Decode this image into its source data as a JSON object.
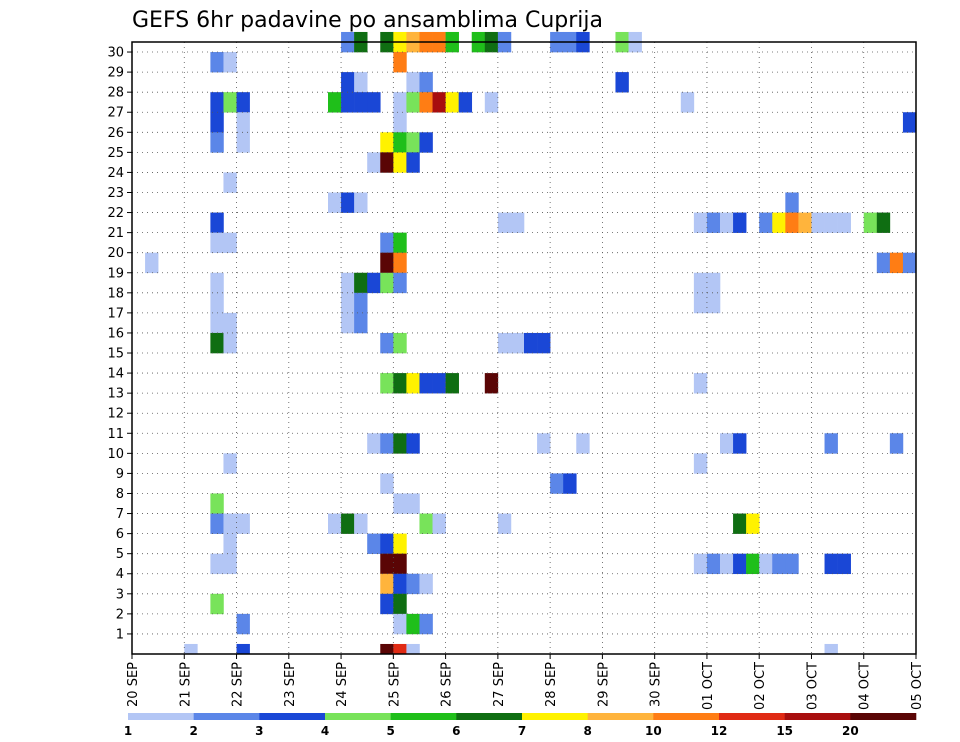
{
  "chart_data": {
    "type": "heatmap",
    "title": "GEFS 6hr padavine po ansamblima Cuprija",
    "x_ticks": [
      "20 SEP",
      "21 SEP",
      "22 SEP",
      "23 SEP",
      "24 SEP",
      "25 SEP",
      "26 SEP",
      "27 SEP",
      "28 SEP",
      "29 SEP",
      "30 SEP",
      "01 OCT",
      "02 OCT",
      "03 OCT",
      "04 OCT",
      "05 OCT"
    ],
    "y_ticks": [
      "1",
      "2",
      "3",
      "4",
      "5",
      "6",
      "7",
      "8",
      "9",
      "10",
      "11",
      "12",
      "13",
      "14",
      "15",
      "16",
      "17",
      "18",
      "19",
      "20",
      "21",
      "22",
      "23",
      "24",
      "25",
      "26",
      "27",
      "28",
      "29",
      "30"
    ],
    "x_range_steps": [
      0,
      60
    ],
    "y_range": [
      0,
      30
    ],
    "grid": true,
    "colorbar": {
      "labels": [
        "1",
        "2",
        "3",
        "4",
        "5",
        "6",
        "7",
        "8",
        "10",
        "12",
        "15",
        "20"
      ],
      "colors": [
        "#b3c6f5",
        "#5b86e8",
        "#1a47d6",
        "#78e35a",
        "#1fbf1a",
        "#0f6e12",
        "#fff200",
        "#ffb43c",
        "#ff7d14",
        "#e02a14",
        "#a80e0e",
        "#5a0505"
      ]
    },
    "cells": [
      {
        "m": 30,
        "t": 16,
        "v": 2
      },
      {
        "m": 30,
        "t": 17,
        "v": 6
      },
      {
        "m": 30,
        "t": 19,
        "v": 6
      },
      {
        "m": 30,
        "t": 20,
        "v": 7
      },
      {
        "m": 30,
        "t": 21,
        "v": 8
      },
      {
        "m": 30,
        "t": 22,
        "v": 10
      },
      {
        "m": 30,
        "t": 23,
        "v": 10
      },
      {
        "m": 30,
        "t": 24,
        "v": 5
      },
      {
        "m": 30,
        "t": 26,
        "v": 5
      },
      {
        "m": 30,
        "t": 27,
        "v": 6
      },
      {
        "m": 30,
        "t": 28,
        "v": 2
      },
      {
        "m": 30,
        "t": 32,
        "v": 2
      },
      {
        "m": 30,
        "t": 33,
        "v": 2
      },
      {
        "m": 30,
        "t": 34,
        "v": 3
      },
      {
        "m": 30,
        "t": 37,
        "v": 4
      },
      {
        "m": 30,
        "t": 38,
        "v": 1
      },
      {
        "m": 29,
        "t": 6,
        "v": 2
      },
      {
        "m": 29,
        "t": 7,
        "v": 1
      },
      {
        "m": 29,
        "t": 20,
        "v": 10
      },
      {
        "m": 28,
        "t": 16,
        "v": 3
      },
      {
        "m": 28,
        "t": 17,
        "v": 1
      },
      {
        "m": 28,
        "t": 21,
        "v": 1
      },
      {
        "m": 28,
        "t": 22,
        "v": 2
      },
      {
        "m": 28,
        "t": 37,
        "v": 3
      },
      {
        "m": 27,
        "t": 6,
        "v": 3
      },
      {
        "m": 27,
        "t": 7,
        "v": 4
      },
      {
        "m": 27,
        "t": 8,
        "v": 3
      },
      {
        "m": 27,
        "t": 15,
        "v": 5
      },
      {
        "m": 27,
        "t": 16,
        "v": 3
      },
      {
        "m": 27,
        "t": 17,
        "v": 3
      },
      {
        "m": 27,
        "t": 18,
        "v": 3
      },
      {
        "m": 27,
        "t": 20,
        "v": 1
      },
      {
        "m": 27,
        "t": 21,
        "v": 4
      },
      {
        "m": 27,
        "t": 22,
        "v": 10
      },
      {
        "m": 27,
        "t": 23,
        "v": 15
      },
      {
        "m": 27,
        "t": 24,
        "v": 7
      },
      {
        "m": 27,
        "t": 25,
        "v": 3
      },
      {
        "m": 27,
        "t": 27,
        "v": 1
      },
      {
        "m": 27,
        "t": 42,
        "v": 1
      },
      {
        "m": 26,
        "t": 6,
        "v": 3
      },
      {
        "m": 26,
        "t": 8,
        "v": 1
      },
      {
        "m": 26,
        "t": 20,
        "v": 1
      },
      {
        "m": 26,
        "t": 59,
        "v": 3
      },
      {
        "m": 25,
        "t": 6,
        "v": 2
      },
      {
        "m": 25,
        "t": 8,
        "v": 1
      },
      {
        "m": 25,
        "t": 19,
        "v": 7
      },
      {
        "m": 25,
        "t": 20,
        "v": 5
      },
      {
        "m": 25,
        "t": 21,
        "v": 4
      },
      {
        "m": 25,
        "t": 22,
        "v": 3
      },
      {
        "m": 24,
        "t": 18,
        "v": 1
      },
      {
        "m": 24,
        "t": 19,
        "v": 20
      },
      {
        "m": 24,
        "t": 20,
        "v": 7
      },
      {
        "m": 24,
        "t": 21,
        "v": 3
      },
      {
        "m": 23,
        "t": 7,
        "v": 1
      },
      {
        "m": 22,
        "t": 15,
        "v": 1
      },
      {
        "m": 22,
        "t": 16,
        "v": 3
      },
      {
        "m": 22,
        "t": 17,
        "v": 1
      },
      {
        "m": 22,
        "t": 50,
        "v": 2
      },
      {
        "m": 21,
        "t": 6,
        "v": 3
      },
      {
        "m": 21,
        "t": 28,
        "v": 1
      },
      {
        "m": 21,
        "t": 29,
        "v": 1
      },
      {
        "m": 21,
        "t": 43,
        "v": 1
      },
      {
        "m": 21,
        "t": 44,
        "v": 2
      },
      {
        "m": 21,
        "t": 45,
        "v": 1
      },
      {
        "m": 21,
        "t": 46,
        "v": 3
      },
      {
        "m": 21,
        "t": 48,
        "v": 2
      },
      {
        "m": 21,
        "t": 49,
        "v": 7
      },
      {
        "m": 21,
        "t": 50,
        "v": 10
      },
      {
        "m": 21,
        "t": 51,
        "v": 8
      },
      {
        "m": 21,
        "t": 52,
        "v": 1
      },
      {
        "m": 21,
        "t": 53,
        "v": 1
      },
      {
        "m": 21,
        "t": 54,
        "v": 1
      },
      {
        "m": 21,
        "t": 56,
        "v": 4
      },
      {
        "m": 21,
        "t": 57,
        "v": 6
      },
      {
        "m": 20,
        "t": 6,
        "v": 1
      },
      {
        "m": 20,
        "t": 7,
        "v": 1
      },
      {
        "m": 20,
        "t": 19,
        "v": 2
      },
      {
        "m": 20,
        "t": 20,
        "v": 5
      },
      {
        "m": 19,
        "t": 1,
        "v": 1
      },
      {
        "m": 19,
        "t": 19,
        "v": 20
      },
      {
        "m": 19,
        "t": 20,
        "v": 10
      },
      {
        "m": 19,
        "t": 57,
        "v": 2
      },
      {
        "m": 19,
        "t": 58,
        "v": 10
      },
      {
        "m": 19,
        "t": 59,
        "v": 2
      },
      {
        "m": 18,
        "t": 6,
        "v": 1
      },
      {
        "m": 18,
        "t": 16,
        "v": 1
      },
      {
        "m": 18,
        "t": 17,
        "v": 6
      },
      {
        "m": 18,
        "t": 18,
        "v": 3
      },
      {
        "m": 18,
        "t": 19,
        "v": 4
      },
      {
        "m": 18,
        "t": 20,
        "v": 2
      },
      {
        "m": 18,
        "t": 43,
        "v": 1
      },
      {
        "m": 18,
        "t": 44,
        "v": 1
      },
      {
        "m": 17,
        "t": 6,
        "v": 1
      },
      {
        "m": 17,
        "t": 16,
        "v": 1
      },
      {
        "m": 17,
        "t": 17,
        "v": 2
      },
      {
        "m": 17,
        "t": 43,
        "v": 1
      },
      {
        "m": 17,
        "t": 44,
        "v": 1
      },
      {
        "m": 16,
        "t": 6,
        "v": 1
      },
      {
        "m": 16,
        "t": 7,
        "v": 1
      },
      {
        "m": 16,
        "t": 16,
        "v": 1
      },
      {
        "m": 16,
        "t": 17,
        "v": 2
      },
      {
        "m": 15,
        "t": 6,
        "v": 6
      },
      {
        "m": 15,
        "t": 7,
        "v": 1
      },
      {
        "m": 15,
        "t": 19,
        "v": 2
      },
      {
        "m": 15,
        "t": 20,
        "v": 4
      },
      {
        "m": 15,
        "t": 28,
        "v": 1
      },
      {
        "m": 15,
        "t": 29,
        "v": 1
      },
      {
        "m": 15,
        "t": 30,
        "v": 3
      },
      {
        "m": 15,
        "t": 31,
        "v": 3
      },
      {
        "m": 13,
        "t": 19,
        "v": 4
      },
      {
        "m": 13,
        "t": 20,
        "v": 6
      },
      {
        "m": 13,
        "t": 21,
        "v": 7
      },
      {
        "m": 13,
        "t": 22,
        "v": 3
      },
      {
        "m": 13,
        "t": 23,
        "v": 3
      },
      {
        "m": 13,
        "t": 24,
        "v": 6
      },
      {
        "m": 13,
        "t": 27,
        "v": 20
      },
      {
        "m": 13,
        "t": 43,
        "v": 1
      },
      {
        "m": 10,
        "t": 18,
        "v": 1
      },
      {
        "m": 10,
        "t": 19,
        "v": 2
      },
      {
        "m": 10,
        "t": 20,
        "v": 6
      },
      {
        "m": 10,
        "t": 21,
        "v": 3
      },
      {
        "m": 10,
        "t": 31,
        "v": 1
      },
      {
        "m": 10,
        "t": 34,
        "v": 1
      },
      {
        "m": 10,
        "t": 45,
        "v": 1
      },
      {
        "m": 10,
        "t": 46,
        "v": 3
      },
      {
        "m": 10,
        "t": 53,
        "v": 2
      },
      {
        "m": 10,
        "t": 58,
        "v": 2
      },
      {
        "m": 9,
        "t": 7,
        "v": 1
      },
      {
        "m": 9,
        "t": 43,
        "v": 1
      },
      {
        "m": 8,
        "t": 19,
        "v": 1
      },
      {
        "m": 8,
        "t": 32,
        "v": 2
      },
      {
        "m": 8,
        "t": 33,
        "v": 3
      },
      {
        "m": 7,
        "t": 6,
        "v": 4
      },
      {
        "m": 7,
        "t": 20,
        "v": 1
      },
      {
        "m": 7,
        "t": 21,
        "v": 1
      },
      {
        "m": 6,
        "t": 6,
        "v": 2
      },
      {
        "m": 6,
        "t": 7,
        "v": 1
      },
      {
        "m": 6,
        "t": 8,
        "v": 1
      },
      {
        "m": 6,
        "t": 15,
        "v": 1
      },
      {
        "m": 6,
        "t": 16,
        "v": 6
      },
      {
        "m": 6,
        "t": 17,
        "v": 1
      },
      {
        "m": 6,
        "t": 22,
        "v": 4
      },
      {
        "m": 6,
        "t": 23,
        "v": 1
      },
      {
        "m": 6,
        "t": 28,
        "v": 1
      },
      {
        "m": 6,
        "t": 46,
        "v": 6
      },
      {
        "m": 6,
        "t": 47,
        "v": 7
      },
      {
        "m": 5,
        "t": 7,
        "v": 1
      },
      {
        "m": 5,
        "t": 18,
        "v": 2
      },
      {
        "m": 5,
        "t": 19,
        "v": 3
      },
      {
        "m": 5,
        "t": 20,
        "v": 7
      },
      {
        "m": 4,
        "t": 6,
        "v": 1
      },
      {
        "m": 4,
        "t": 7,
        "v": 1
      },
      {
        "m": 4,
        "t": 19,
        "v": 20
      },
      {
        "m": 4,
        "t": 20,
        "v": 20
      },
      {
        "m": 4,
        "t": 43,
        "v": 1
      },
      {
        "m": 4,
        "t": 44,
        "v": 2
      },
      {
        "m": 4,
        "t": 45,
        "v": 1
      },
      {
        "m": 4,
        "t": 46,
        "v": 3
      },
      {
        "m": 4,
        "t": 47,
        "v": 5
      },
      {
        "m": 4,
        "t": 48,
        "v": 1
      },
      {
        "m": 4,
        "t": 49,
        "v": 2
      },
      {
        "m": 4,
        "t": 50,
        "v": 2
      },
      {
        "m": 4,
        "t": 53,
        "v": 3
      },
      {
        "m": 4,
        "t": 54,
        "v": 3
      },
      {
        "m": 3,
        "t": 19,
        "v": 8
      },
      {
        "m": 3,
        "t": 20,
        "v": 3
      },
      {
        "m": 3,
        "t": 21,
        "v": 2
      },
      {
        "m": 3,
        "t": 22,
        "v": 1
      },
      {
        "m": 2,
        "t": 6,
        "v": 4
      },
      {
        "m": 2,
        "t": 19,
        "v": 3
      },
      {
        "m": 2,
        "t": 20,
        "v": 6
      },
      {
        "m": 1,
        "t": 8,
        "v": 2
      },
      {
        "m": 1,
        "t": 20,
        "v": 1
      },
      {
        "m": 1,
        "t": 21,
        "v": 5
      },
      {
        "m": 1,
        "t": 22,
        "v": 2
      },
      {
        "m": 0,
        "t": 4,
        "v": 1
      },
      {
        "m": 0,
        "t": 8,
        "v": 3
      },
      {
        "m": 0,
        "t": 19,
        "v": 20
      },
      {
        "m": 0,
        "t": 20,
        "v": 12
      },
      {
        "m": 0,
        "t": 21,
        "v": 1
      },
      {
        "m": 0,
        "t": 53,
        "v": 1
      }
    ]
  }
}
